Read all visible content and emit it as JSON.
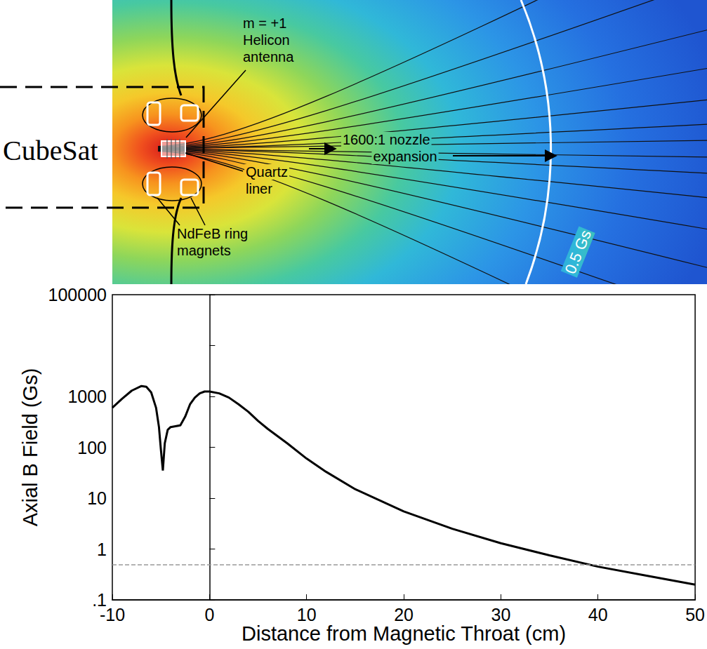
{
  "chart_data": {
    "type": "line",
    "xlabel": "Distance from Magnetic Throat (cm)",
    "ylabel": "Axial B Field (Gs)",
    "x": [
      -10,
      -9,
      -8,
      -7,
      -6.5,
      -6,
      -5.5,
      -5.2,
      -5,
      -4.8,
      -4.6,
      -4.3,
      -4,
      -3.5,
      -3,
      -2.5,
      -2,
      -1.5,
      -1,
      -0.5,
      0,
      1,
      2,
      3,
      4,
      5,
      6,
      8,
      10,
      12,
      15,
      20,
      25,
      30,
      35,
      40,
      45,
      50
    ],
    "values": [
      600,
      900,
      1300,
      1600,
      1550,
      1200,
      600,
      250,
      90,
      35,
      120,
      220,
      250,
      260,
      270,
      400,
      700,
      950,
      1150,
      1250,
      1250,
      1150,
      950,
      700,
      500,
      330,
      230,
      120,
      60,
      33,
      15,
      5.5,
      2.5,
      1.3,
      0.75,
      0.45,
      0.3,
      0.2
    ],
    "color": "#000000",
    "line_style": "solid",
    "xlim": [
      -10,
      50
    ],
    "xticks": [
      -10,
      0,
      10,
      20,
      30,
      40,
      50
    ],
    "ylim": [
      0.1,
      100000
    ],
    "yticks": [
      {
        "value": 0.1,
        "label": ".1"
      },
      1,
      10,
      100,
      1000,
      100000
    ],
    "log": "y",
    "grid": false,
    "reference_lines": [
      {
        "value": 0.5,
        "line_style": "dashed",
        "color": "#999999"
      }
    ]
  },
  "diagram": {
    "frame_label": "CubeSat",
    "antenna_label": [
      "m = +1",
      "Helicon",
      "antenna"
    ],
    "nozzle_label": [
      "1600:1 nozzle",
      "expansion"
    ],
    "liner_label": [
      "Quartz",
      "liner"
    ],
    "magnet_label": [
      "NdFeB ring",
      "magnets"
    ],
    "contour_label": "0.5 Gs"
  }
}
